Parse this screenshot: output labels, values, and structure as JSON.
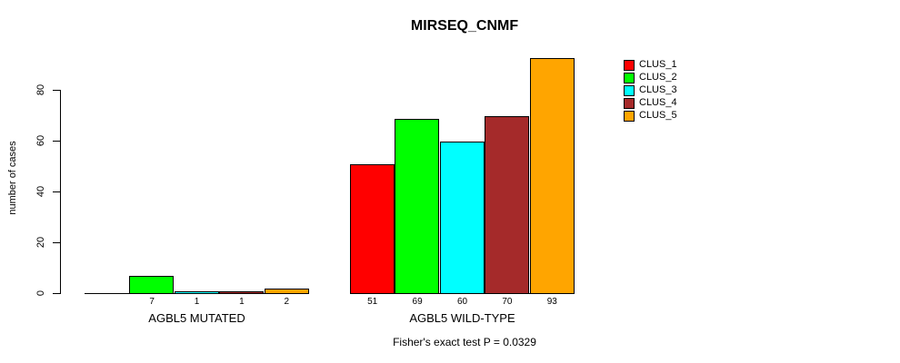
{
  "title": "MIRSEQ_CNMF",
  "footer": "Fisher's exact test P = 0.0329",
  "chart_data": {
    "type": "bar",
    "title": "MIRSEQ_CNMF",
    "xlabel": "",
    "ylabel": "number of cases",
    "ylim": [
      0,
      93
    ],
    "yticks": [
      0,
      20,
      40,
      60,
      80
    ],
    "grid": false,
    "legend_position": "right-outside",
    "series_names": [
      "CLUS_1",
      "CLUS_2",
      "CLUS_3",
      "CLUS_4",
      "CLUS_5"
    ],
    "series_colors": [
      "#FF0000",
      "#00FF00",
      "#00FFFF",
      "#A52A2A",
      "#FFA500"
    ],
    "groups": [
      {
        "label": "AGBL5 MUTATED",
        "values": [
          0,
          7,
          1,
          1,
          2
        ],
        "bar_labels": [
          "",
          "7",
          "1",
          "1",
          "2"
        ]
      },
      {
        "label": "AGBL5 WILD-TYPE",
        "values": [
          51,
          69,
          60,
          70,
          93
        ],
        "bar_labels": [
          "51",
          "69",
          "60",
          "70",
          "93"
        ]
      }
    ],
    "annotation": "Fisher's exact test P = 0.0329"
  }
}
